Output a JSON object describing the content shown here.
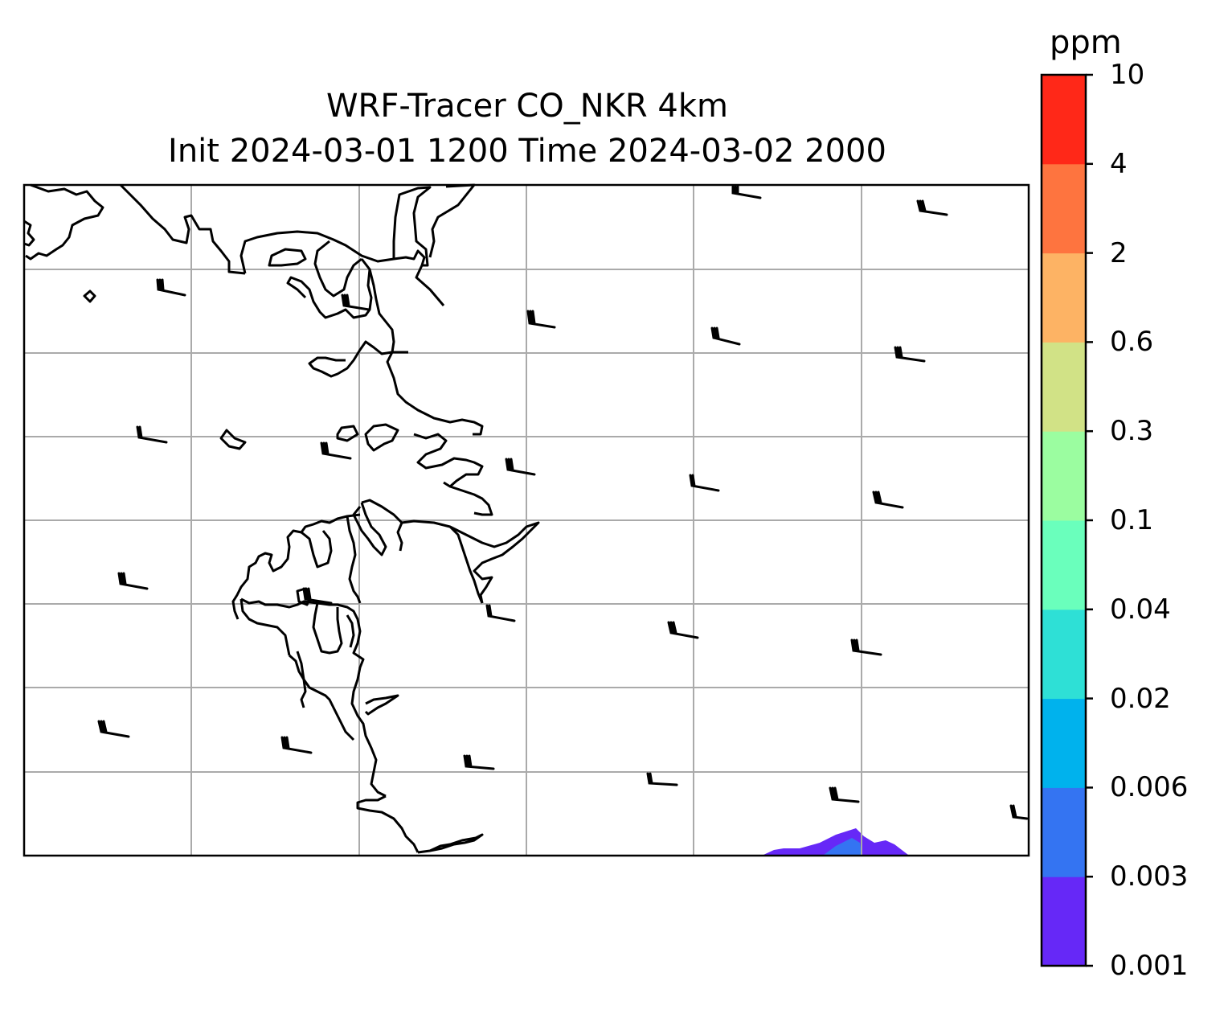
{
  "title": {
    "line1": "WRF-Tracer CO_NKR 4km",
    "line2": "Init 2024-03-01 1200 Time 2024-03-02 2000"
  },
  "colorbar": {
    "unit": "ppm",
    "levels": [
      "0.001",
      "0.003",
      "0.006",
      "0.02",
      "0.04",
      "0.1",
      "0.3",
      "0.6",
      "2",
      "4",
      "10"
    ],
    "colors": [
      "#6628f7",
      "#3474f2",
      "#00b2ed",
      "#2ee0d6",
      "#6affbc",
      "#9bfda0",
      "#d1e286",
      "#fdb364",
      "#fe743f",
      "#ff2818"
    ]
  },
  "map": {
    "field": "CO tracer concentration",
    "gridlines": true,
    "coastline_color": "#000000",
    "gridline_color": "#aaaaaa",
    "wind_barbs": true
  }
}
